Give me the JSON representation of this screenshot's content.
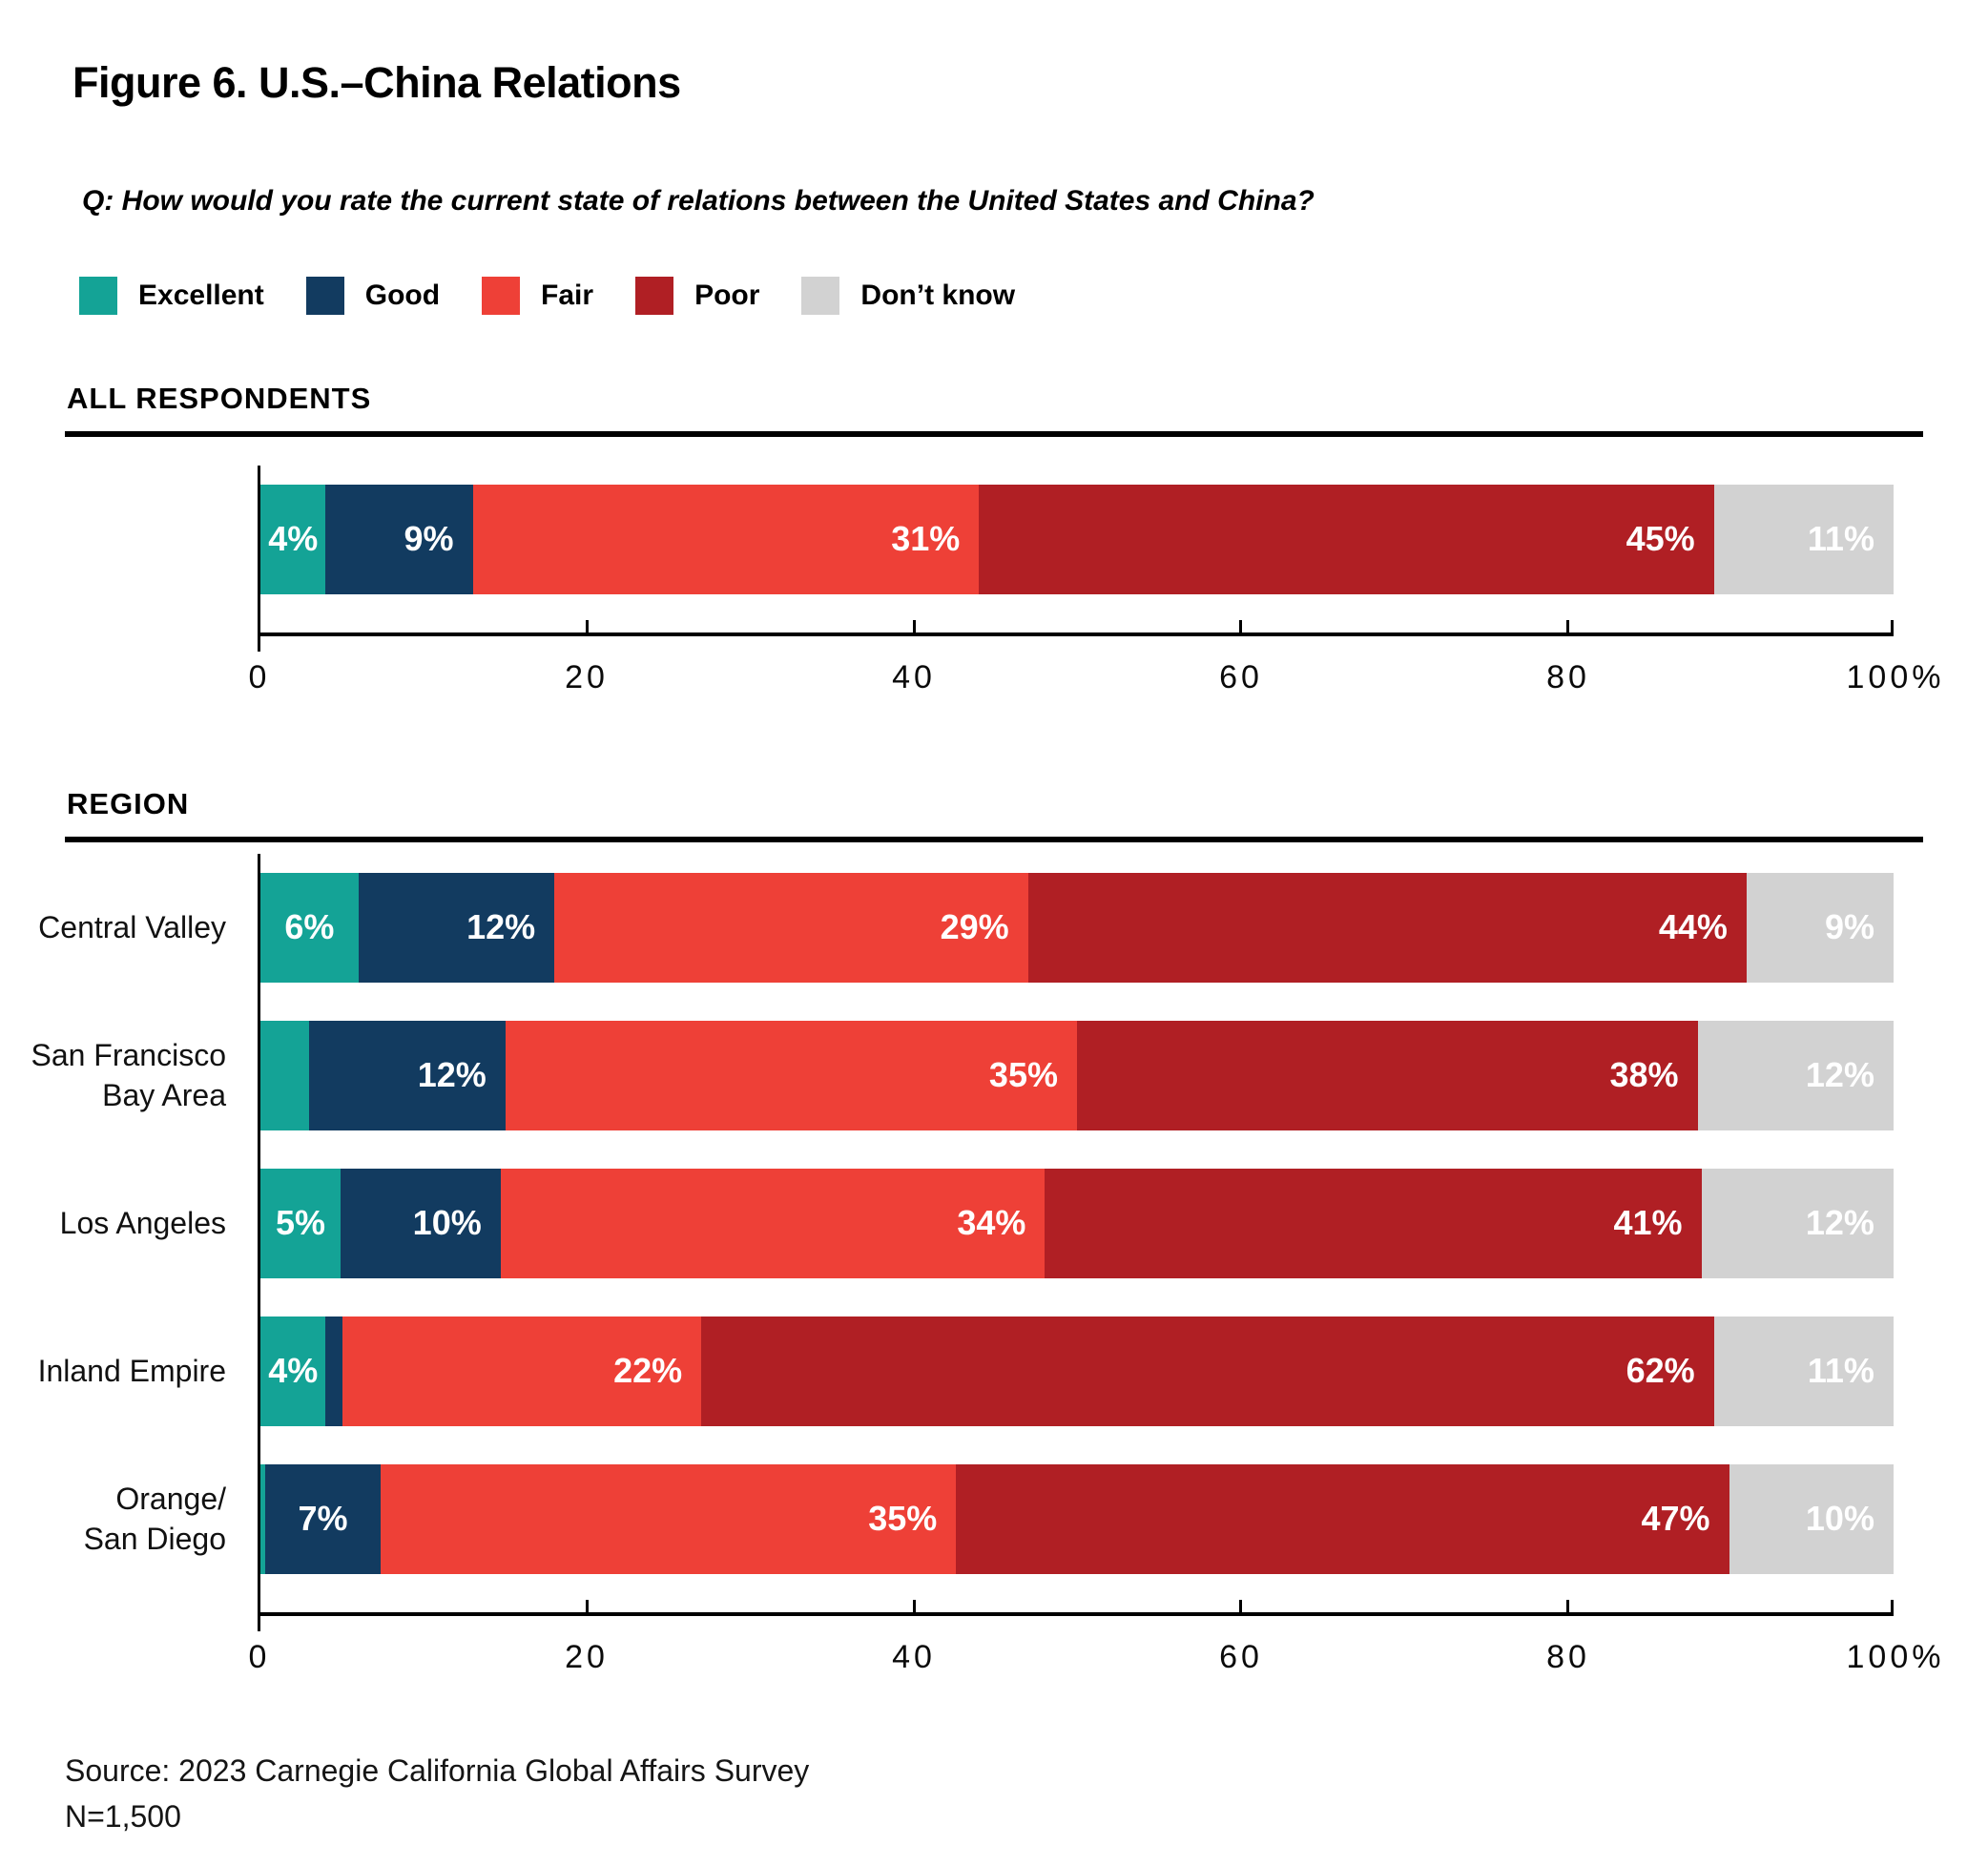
{
  "figure": {
    "title": "Figure 6. U.S.–China Relations",
    "question": "Q: How would you rate the current state of relations between the United States and China?",
    "source_line": "Source: 2023 Carnegie California Global Affairs Survey",
    "sample_size": "N=1,500"
  },
  "legend": [
    {
      "label": "Excellent",
      "color": "#14A396"
    },
    {
      "label": "Good",
      "color": "#123B60"
    },
    {
      "label": "Fair",
      "color": "#EE4037"
    },
    {
      "label": "Poor",
      "color": "#B01F24"
    },
    {
      "label": "Don’t know",
      "color": "#D2D2D2"
    }
  ],
  "axis": {
    "ticks": [
      {
        "value": 0,
        "label": "0"
      },
      {
        "value": 20,
        "label": "20"
      },
      {
        "value": 40,
        "label": "40"
      },
      {
        "value": 60,
        "label": "60"
      },
      {
        "value": 80,
        "label": "80"
      },
      {
        "value": 100,
        "label": "100%"
      }
    ]
  },
  "chart_data": {
    "type": "bar",
    "orientation": "horizontal",
    "stacked": true,
    "title": "Figure 6. U.S.–China Relations",
    "categories": [
      "Excellent",
      "Good",
      "Fair",
      "Poor",
      "Don’t know"
    ],
    "xlim": [
      0,
      100
    ],
    "sections": [
      {
        "heading": "ALL RESPONDENTS",
        "rows": [
          {
            "label": "",
            "values": [
              4,
              9,
              31,
              45,
              11
            ],
            "value_labels": [
              "4%",
              "9%",
              "31%",
              "45%",
              "11%"
            ]
          }
        ]
      },
      {
        "heading": "REGION",
        "rows": [
          {
            "label": "Central Valley",
            "values": [
              6,
              12,
              29,
              44,
              9
            ],
            "value_labels": [
              "6%",
              "12%",
              "29%",
              "44%",
              "9%"
            ]
          },
          {
            "label": "San Francisco\nBay Area",
            "values": [
              3,
              12,
              35,
              38,
              12
            ],
            "value_labels": [
              "",
              "12%",
              "35%",
              "38%",
              "12%"
            ]
          },
          {
            "label": "Los Angeles",
            "values": [
              5,
              10,
              34,
              41,
              12
            ],
            "value_labels": [
              "5%",
              "10%",
              "34%",
              "41%",
              "12%"
            ]
          },
          {
            "label": "Inland Empire",
            "values": [
              4,
              1,
              22,
              62,
              11
            ],
            "value_labels": [
              "4%",
              "",
              "22%",
              "62%",
              "11%"
            ]
          },
          {
            "label": "Orange/\nSan Diego",
            "values": [
              0.3,
              7,
              35,
              47,
              10
            ],
            "value_labels": [
              "",
              "7%",
              "35%",
              "47%",
              "10%"
            ]
          }
        ]
      }
    ]
  }
}
